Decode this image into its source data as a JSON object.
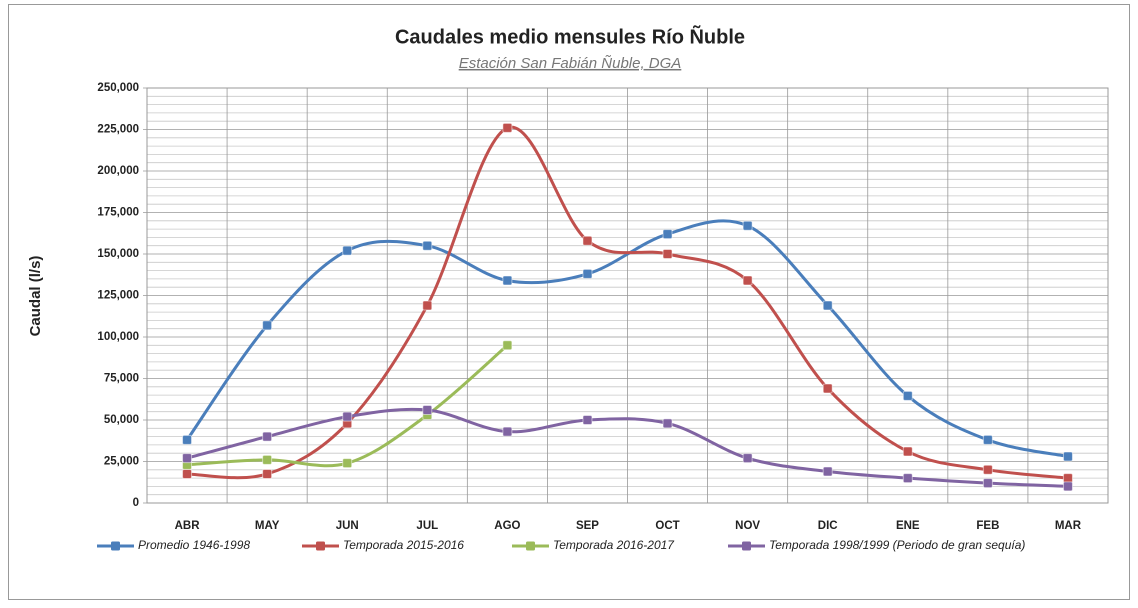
{
  "chart_data": {
    "type": "line",
    "title": "Caudales medio mensules Río Ñuble",
    "subtitle": "Estación San Fabián Ñuble, DGA",
    "y_label": "Caudal (l/s)",
    "categories": [
      "ABR",
      "MAY",
      "JUN",
      "JUL",
      "AGO",
      "SEP",
      "OCT",
      "NOV",
      "DIC",
      "ENE",
      "FEB",
      "MAR"
    ],
    "series": [
      {
        "name": "Promedio 1946-1998",
        "color": "#4a7ebb",
        "values": [
          38000,
          107000,
          152000,
          155000,
          134000,
          138000,
          162000,
          167000,
          119000,
          64500,
          38000,
          28000
        ]
      },
      {
        "name": "Temporada 2015-2016",
        "color": "#c0504d",
        "values": [
          17500,
          17500,
          48000,
          119000,
          226000,
          158000,
          150000,
          134000,
          69000,
          31000,
          20000,
          15000
        ]
      },
      {
        "name": "Temporada 2016-2017",
        "color": "#9bbb59",
        "values": [
          23000,
          26000,
          24000,
          53000,
          95000,
          null,
          null,
          null,
          null,
          null,
          null,
          null
        ]
      },
      {
        "name": "Temporada 1998/1999 (Periodo de gran sequía)",
        "color": "#8064a2",
        "values": [
          27000,
          40000,
          52000,
          56000,
          43000,
          50000,
          48000,
          27000,
          19000,
          15000,
          12000,
          10000
        ]
      }
    ],
    "ylim": [
      0,
      250000
    ],
    "yticks": [
      0,
      {
        "value": 25000,
        "label": "25,000"
      },
      {
        "value": 50000,
        "label": "50,000"
      },
      {
        "value": 75000,
        "label": "75,000"
      },
      {
        "value": 100000,
        "label": "100,000"
      },
      {
        "value": 125000,
        "label": "125,000"
      },
      {
        "value": 150000,
        "label": "150,000"
      },
      {
        "value": 175000,
        "label": "175,000"
      },
      {
        "value": 200000,
        "label": "200,000"
      },
      {
        "value": 225000,
        "label": "225,000"
      },
      {
        "value": 250000,
        "label": "250,000"
      }
    ],
    "grid": true,
    "smooth": true,
    "legend": "bottom"
  }
}
